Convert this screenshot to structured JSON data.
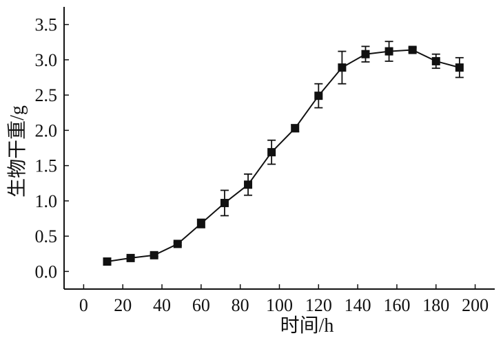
{
  "chart_data": {
    "type": "line",
    "title": "",
    "xlabel": "时间/h",
    "ylabel": "生物干重/g",
    "xlim": [
      -10,
      210
    ],
    "ylim": [
      -0.25,
      3.75
    ],
    "xticks": [
      0,
      20,
      40,
      60,
      80,
      100,
      120,
      140,
      160,
      180,
      200
    ],
    "yticks": [
      0.0,
      0.5,
      1.0,
      1.5,
      2.0,
      2.5,
      3.0,
      3.5
    ],
    "xtick_labels": [
      "0",
      "20",
      "40",
      "60",
      "80",
      "100",
      "120",
      "140",
      "160",
      "180",
      "200"
    ],
    "ytick_labels": [
      "0.0",
      "0.5",
      "1.0",
      "1.5",
      "2.0",
      "2.5",
      "3.0",
      "3.5"
    ],
    "grid": false,
    "legend": "none",
    "marker": "square",
    "error_bars": true,
    "color": "#111111",
    "series": [
      {
        "x": [
          12,
          24,
          36,
          48,
          60,
          72,
          84,
          96,
          108,
          120,
          132,
          144,
          156,
          168,
          180,
          192
        ],
        "y": [
          0.14,
          0.19,
          0.23,
          0.39,
          0.68,
          0.97,
          1.23,
          1.69,
          2.03,
          2.49,
          2.89,
          3.08,
          3.12,
          3.14,
          2.98,
          2.89
        ],
        "yerr": [
          0.02,
          0.02,
          0.02,
          0.02,
          0.06,
          0.18,
          0.15,
          0.17,
          0.05,
          0.17,
          0.23,
          0.11,
          0.14,
          0.03,
          0.1,
          0.14
        ]
      }
    ]
  }
}
